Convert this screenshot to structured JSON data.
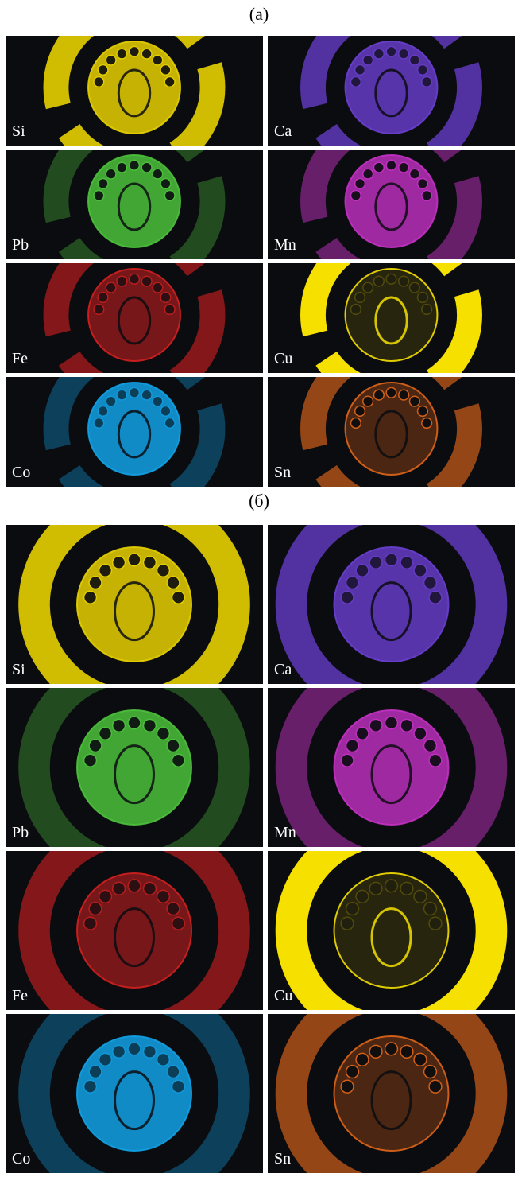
{
  "figure": {
    "parts": [
      {
        "label": "(a)",
        "panels": [
          "Si",
          "Ca",
          "Pb",
          "Mn",
          "Fe",
          "Cu",
          "Co",
          "Sn"
        ]
      },
      {
        "label": "(б)",
        "panels": [
          "Si",
          "Ca",
          "Pb",
          "Mn",
          "Fe",
          "Cu",
          "Co",
          "Sn"
        ]
      }
    ]
  }
}
